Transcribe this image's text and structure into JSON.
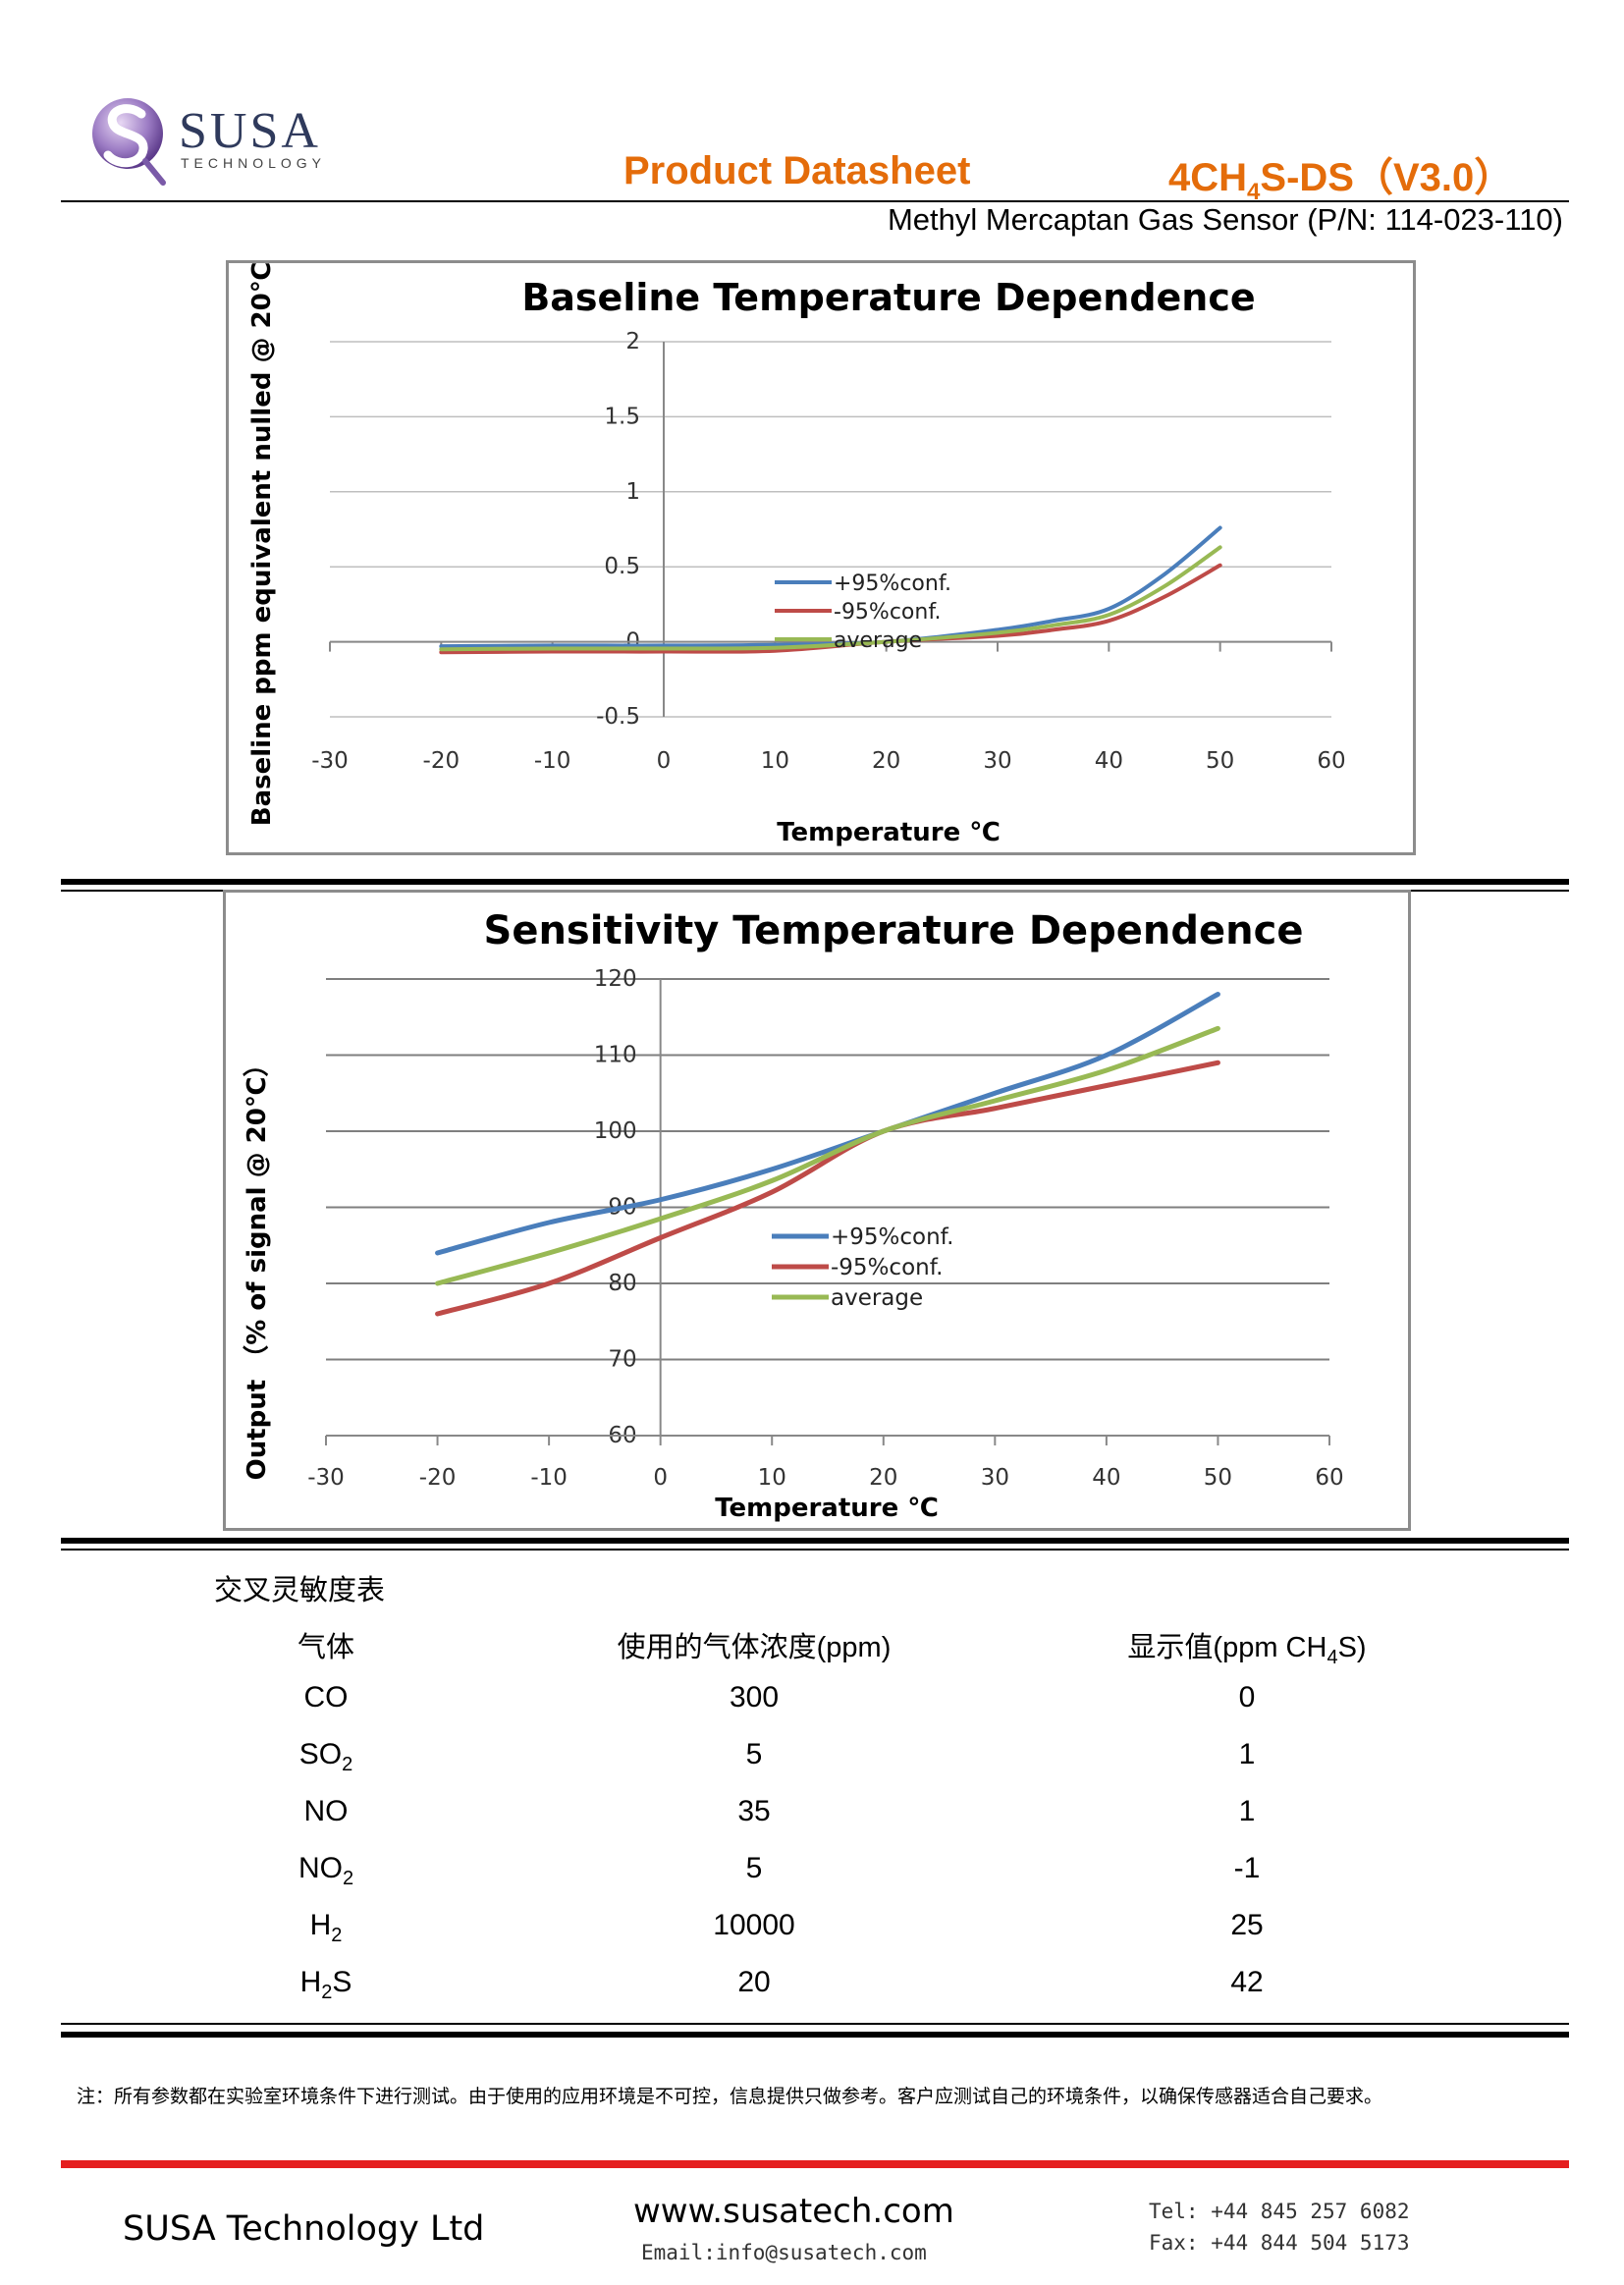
{
  "header": {
    "logo_text": "SUSA",
    "logo_sub": "TECHNOLOGY",
    "title": "Product Datasheet",
    "code_prefix": "4CH",
    "code_sub": "4",
    "code_suffix": "S-DS（V3.0）",
    "part_line": "Methyl Mercaptan Gas Sensor (P/N: 114-023-110)"
  },
  "colors": {
    "accent": "#e46c0a",
    "upper": "#4a7ebb",
    "lower": "#be4b48",
    "average": "#98b954",
    "footer_rule": "#e51f1f"
  },
  "chart_data": [
    {
      "type": "line",
      "title": "Baseline Temperature Dependence",
      "xlabel": "Temperature ℃",
      "ylabel": "Baseline ppm equivalent nulled @ 20℃",
      "xlim": [
        -30,
        60
      ],
      "ylim": [
        -0.5,
        2
      ],
      "xticks": [
        "-30",
        "-20",
        "-10",
        "0",
        "10",
        "20",
        "30",
        "40",
        "50",
        "60"
      ],
      "yticks": [
        "-0.5",
        "0",
        "0.5",
        "1",
        "1.5",
        "2"
      ],
      "grid": true,
      "legend": "center",
      "series": [
        {
          "name": "+95%conf.",
          "x": [
            -20,
            -10,
            0,
            10,
            20,
            30,
            35,
            40,
            45,
            50
          ],
          "values": [
            -0.03,
            -0.025,
            -0.025,
            -0.02,
            0,
            0.08,
            0.14,
            0.22,
            0.45,
            0.76
          ]
        },
        {
          "name": "-95%conf.",
          "x": [
            -20,
            -10,
            0,
            10,
            20,
            30,
            35,
            40,
            45,
            50
          ],
          "values": [
            -0.07,
            -0.065,
            -0.065,
            -0.06,
            0,
            0.04,
            0.08,
            0.14,
            0.3,
            0.51
          ]
        },
        {
          "name": "average",
          "x": [
            -20,
            -10,
            0,
            10,
            20,
            30,
            35,
            40,
            45,
            50
          ],
          "values": [
            -0.05,
            -0.045,
            -0.045,
            -0.04,
            0,
            0.06,
            0.11,
            0.18,
            0.37,
            0.63
          ]
        }
      ]
    },
    {
      "type": "line",
      "title": "Sensitivity Temperature Dependence",
      "xlabel": "Temperature ℃",
      "ylabel": "Output （% of signal  @ 20℃）",
      "xlim": [
        -30,
        60
      ],
      "ylim": [
        60,
        120
      ],
      "xticks": [
        "-30",
        "-20",
        "-10",
        "0",
        "10",
        "20",
        "30",
        "40",
        "50",
        "60"
      ],
      "yticks": [
        "60",
        "70",
        "80",
        "90",
        "100",
        "110",
        "120"
      ],
      "grid": true,
      "legend": "center",
      "series": [
        {
          "name": "+95%conf.",
          "x": [
            -20,
            -10,
            0,
            10,
            20,
            30,
            40,
            50
          ],
          "values": [
            84,
            88,
            91,
            95,
            100,
            105,
            110,
            118
          ]
        },
        {
          "name": "-95%conf.",
          "x": [
            -20,
            -10,
            0,
            10,
            20,
            30,
            40,
            50
          ],
          "values": [
            76,
            80,
            86,
            92,
            100,
            103,
            106,
            109
          ]
        },
        {
          "name": "average",
          "x": [
            -20,
            -10,
            0,
            10,
            20,
            30,
            40,
            50
          ],
          "values": [
            80,
            84,
            88.5,
            93.5,
            100,
            104,
            108,
            113.5
          ]
        }
      ]
    }
  ],
  "cross_sensitivity": {
    "title": "交叉灵敏度表",
    "col_gas": "气体",
    "col_conc": "使用的气体浓度(ppm)",
    "col_disp_pre": "显示值(ppm CH",
    "col_disp_sub": "4",
    "col_disp_post": "S)",
    "rows": [
      {
        "gas": "CO",
        "gas_sub": "",
        "gas_post": "",
        "conc": "300",
        "disp": "0"
      },
      {
        "gas": "SO",
        "gas_sub": "2",
        "gas_post": "",
        "conc": "5",
        "disp": "1"
      },
      {
        "gas": "NO",
        "gas_sub": "",
        "gas_post": "",
        "conc": "35",
        "disp": "1"
      },
      {
        "gas": "NO",
        "gas_sub": "2",
        "gas_post": "",
        "conc": "5",
        "disp": "-1"
      },
      {
        "gas": "H",
        "gas_sub": "2",
        "gas_post": "",
        "conc": "10000",
        "disp": "25"
      },
      {
        "gas": "H",
        "gas_sub": "2",
        "gas_post": "S",
        "conc": "20",
        "disp": "42"
      }
    ]
  },
  "note": "注：所有参数都在实验室环境条件下进行测试。由于使用的应用环境是不可控，信息提供只做参考。客户应测试自己的环境条件，以确保传感器适合自己要求。",
  "footer": {
    "company": "SUSA Technology Ltd",
    "website": "www.susatech.com",
    "email": "Email:info@susatech.com",
    "tel": "Tel: +44 845 257 6082",
    "fax": "Fax: +44 844 504 5173"
  }
}
